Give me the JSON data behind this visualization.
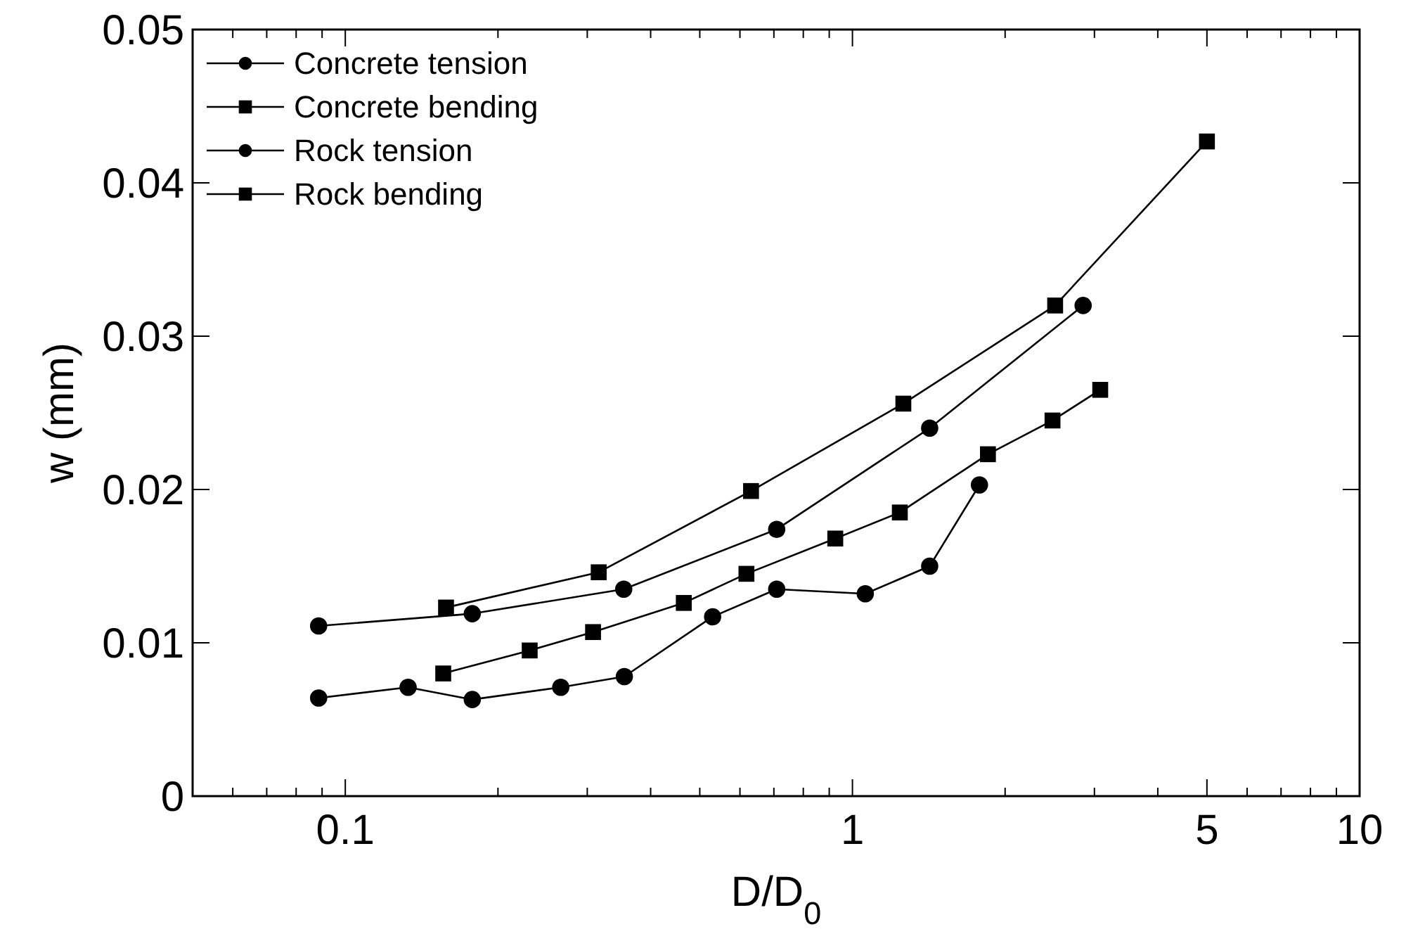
{
  "chart_data": {
    "type": "line",
    "xlabel": "D/D$_{0}$",
    "ylabel": "w (mm)",
    "log": "x",
    "xlim": [
      0.05,
      10
    ],
    "xticks": [
      {
        "value": 0.05,
        "label": null
      },
      {
        "value": 0.06,
        "label": null
      },
      {
        "value": 0.07,
        "label": null
      },
      {
        "value": 0.08,
        "label": null
      },
      {
        "value": 0.09,
        "label": null
      },
      0.1,
      {
        "value": 0.2,
        "label": null
      },
      {
        "value": 0.3,
        "label": null
      },
      {
        "value": 0.4,
        "label": null
      },
      {
        "value": 0.5,
        "label": null
      },
      {
        "value": 0.6,
        "label": null
      },
      {
        "value": 0.7,
        "label": null
      },
      {
        "value": 0.8,
        "label": null
      },
      {
        "value": 0.9,
        "label": null
      },
      1,
      {
        "value": 2,
        "label": null
      },
      {
        "value": 3,
        "label": null
      },
      {
        "value": 4,
        "label": null
      },
      5,
      {
        "value": 6,
        "label": null
      },
      {
        "value": 7,
        "label": null
      },
      {
        "value": 8,
        "label": null
      },
      {
        "value": 9,
        "label": null
      },
      10
    ],
    "ylim": [
      0,
      0.05
    ],
    "yticks": [
      0,
      0.01,
      0.02,
      0.03,
      0.04,
      0.05
    ],
    "grid": false,
    "legend": "top left",
    "line_style": "solid",
    "series": [
      {
        "name": "Concrete tension",
        "color": "#000000",
        "marker": "circle",
        "x": [
          0.0886,
          0.178,
          0.354,
          0.709,
          1.42,
          2.85
        ],
        "values": [
          0.0111,
          0.0119,
          0.0135,
          0.0174,
          0.024,
          0.032
        ]
      },
      {
        "name": "Concrete bending",
        "color": "#000000",
        "marker": "square",
        "x": [
          0.158,
          0.316,
          0.631,
          1.26,
          2.51,
          5.0
        ],
        "values": [
          0.0123,
          0.0146,
          0.0199,
          0.0256,
          0.032,
          0.0427
        ]
      },
      {
        "name": "Rock tension",
        "color": "#000000",
        "marker": "circle",
        "x": [
          0.0886,
          0.133,
          0.178,
          0.266,
          0.355,
          0.53,
          0.709,
          1.06,
          1.42,
          1.78
        ],
        "values": [
          0.0064,
          0.0071,
          0.0063,
          0.0071,
          0.0078,
          0.0117,
          0.0135,
          0.0132,
          0.015,
          0.0203
        ]
      },
      {
        "name": "Rock bending",
        "color": "#000000",
        "marker": "square",
        "x": [
          0.156,
          0.231,
          0.308,
          0.465,
          0.618,
          0.925,
          1.24,
          1.85,
          2.48,
          3.08
        ],
        "values": [
          0.008,
          0.0095,
          0.0107,
          0.0126,
          0.0145,
          0.0168,
          0.0185,
          0.0223,
          0.0245,
          0.0265
        ]
      }
    ]
  }
}
